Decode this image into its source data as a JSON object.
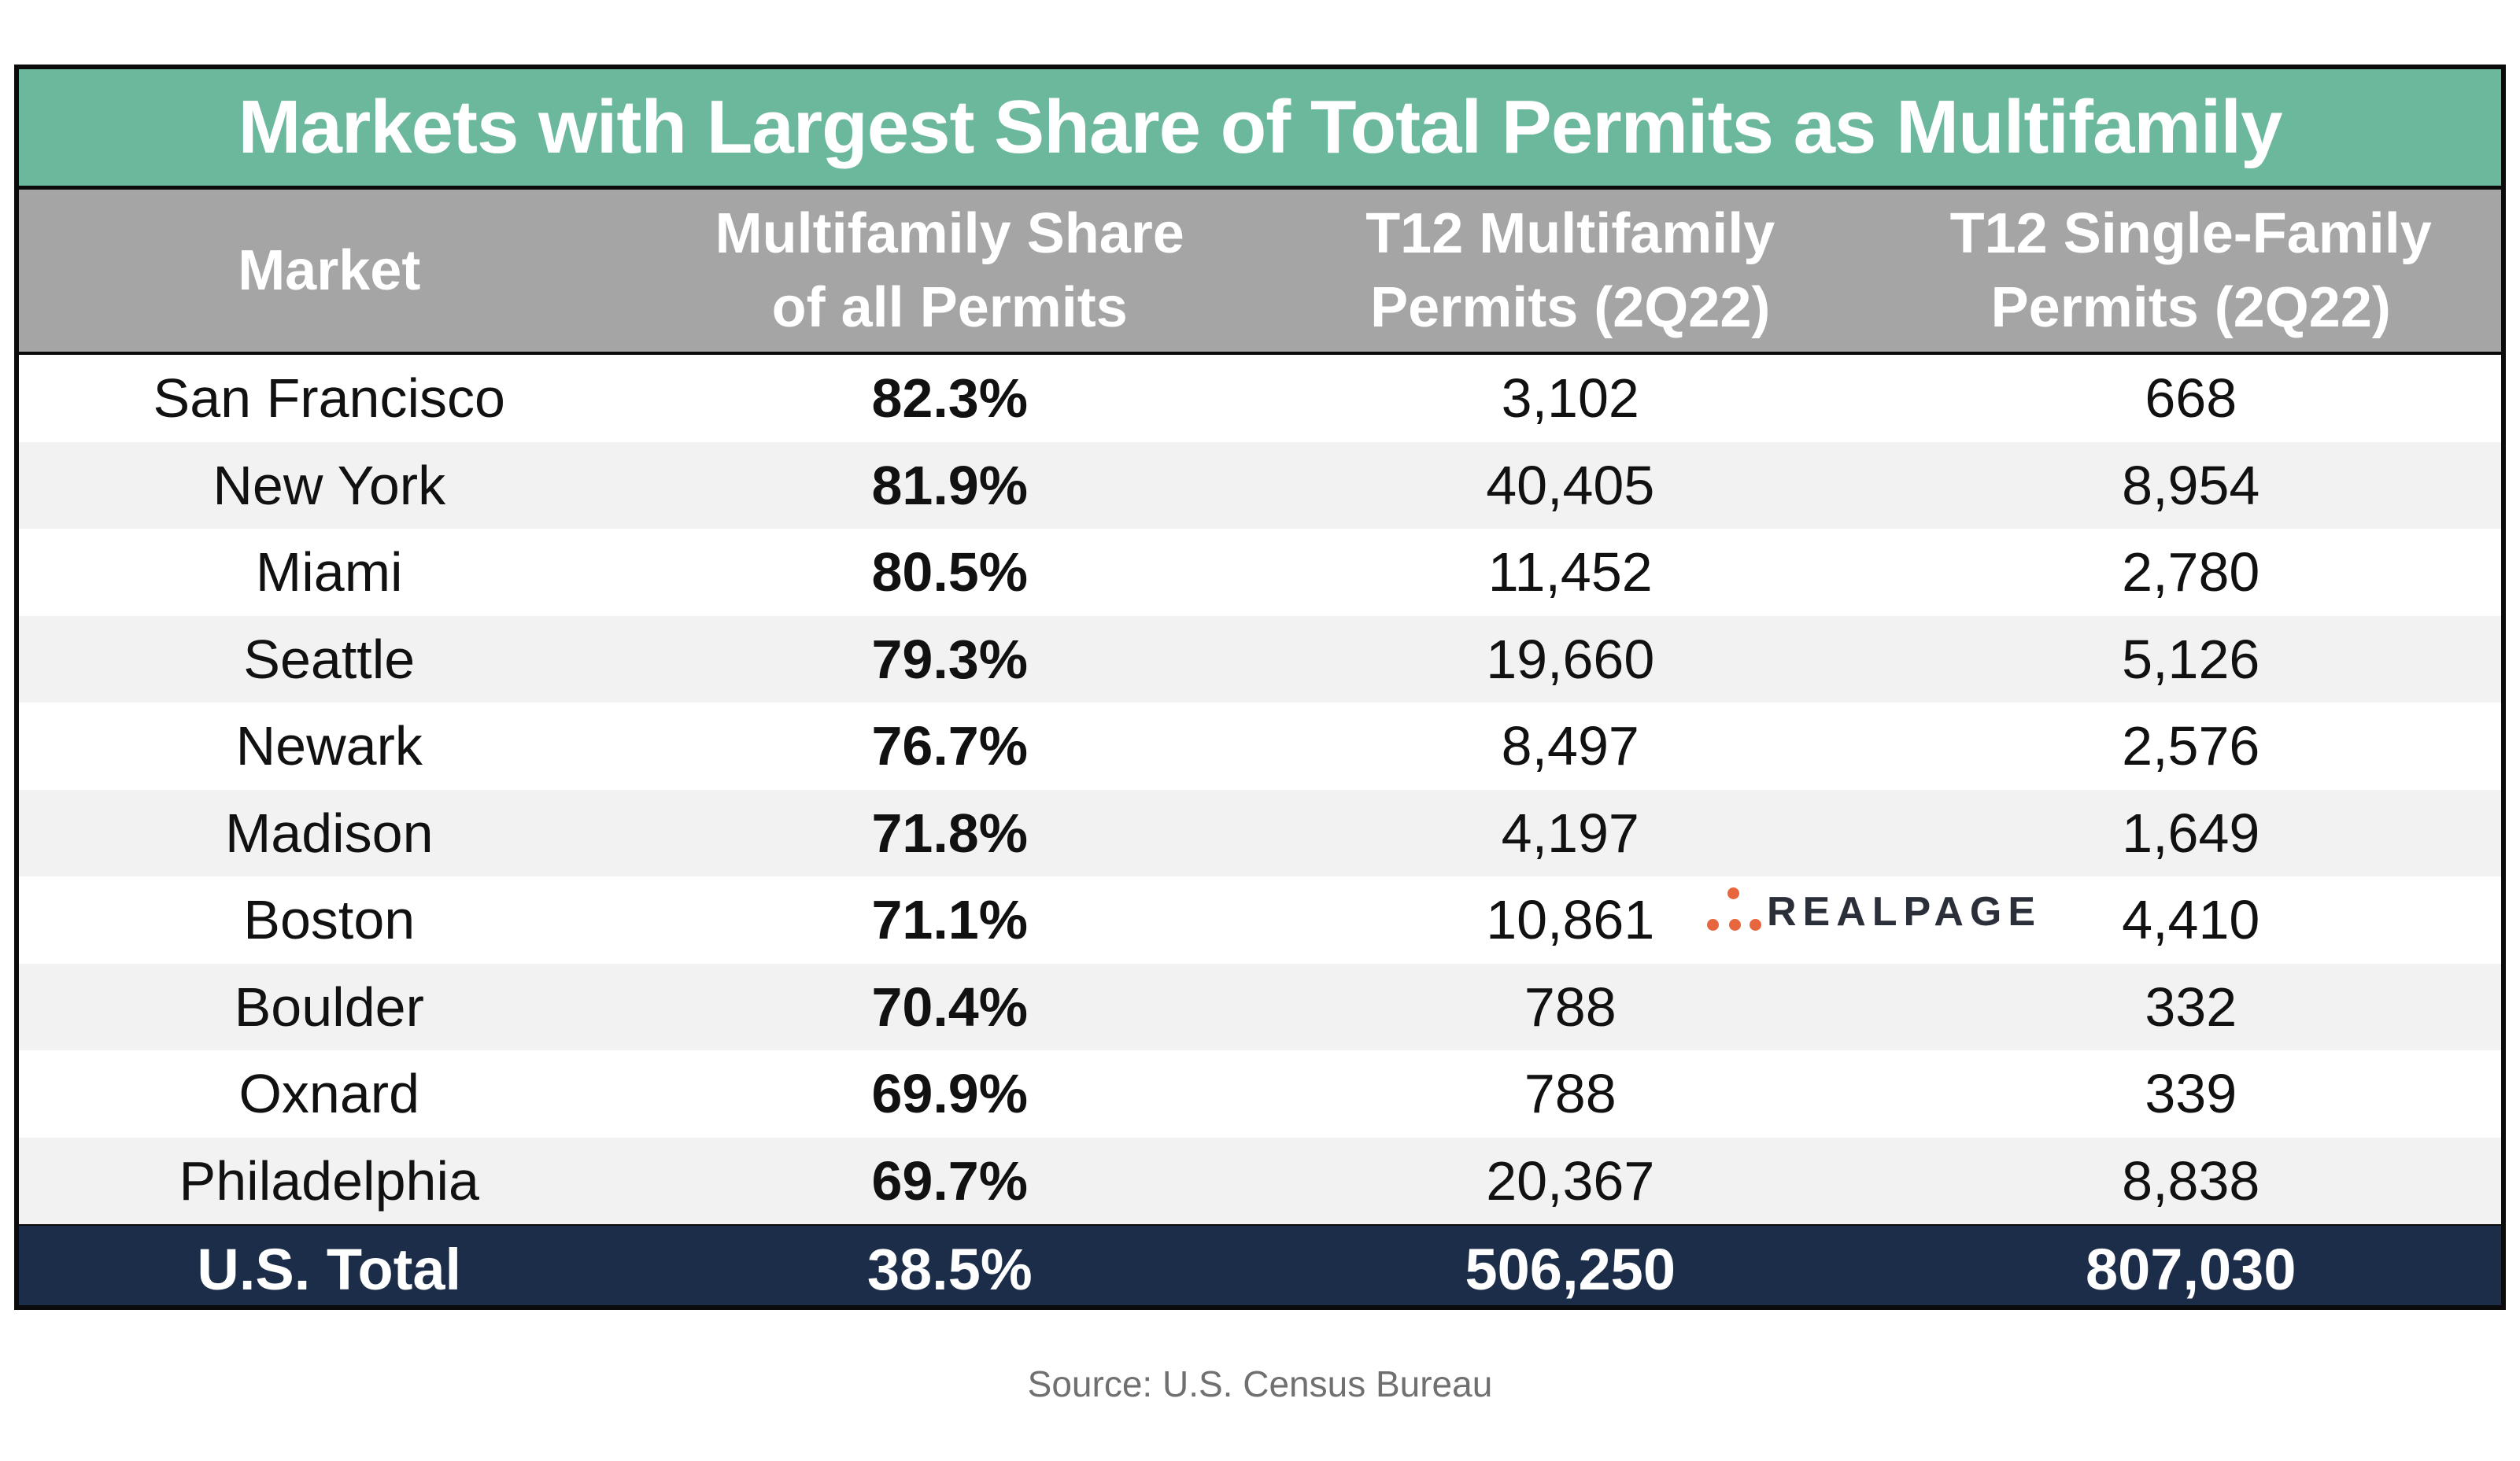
{
  "chart_data": {
    "type": "table",
    "title": "Markets with Largest Share of Total Permits as Multifamily",
    "columns": [
      {
        "line1": "Market",
        "line2": ""
      },
      {
        "line1": "Multifamily Share",
        "line2": "of all Permits"
      },
      {
        "line1": "T12 Multifamily",
        "line2": "Permits (2Q22)"
      },
      {
        "line1": "T12 Single-Family",
        "line2": "Permits (2Q22)"
      }
    ],
    "rows": [
      {
        "market": "San Francisco",
        "share": "82.3%",
        "mf": "3,102",
        "sf": "668"
      },
      {
        "market": "New York",
        "share": "81.9%",
        "mf": "40,405",
        "sf": "8,954"
      },
      {
        "market": "Miami",
        "share": "80.5%",
        "mf": "11,452",
        "sf": "2,780"
      },
      {
        "market": "Seattle",
        "share": "79.3%",
        "mf": "19,660",
        "sf": "5,126"
      },
      {
        "market": "Newark",
        "share": "76.7%",
        "mf": "8,497",
        "sf": "2,576"
      },
      {
        "market": "Madison",
        "share": "71.8%",
        "mf": "4,197",
        "sf": "1,649"
      },
      {
        "market": "Boston",
        "share": "71.1%",
        "mf": "10,861",
        "sf": "4,410"
      },
      {
        "market": "Boulder",
        "share": "70.4%",
        "mf": "788",
        "sf": "332"
      },
      {
        "market": "Oxnard",
        "share": "69.9%",
        "mf": "788",
        "sf": "339"
      },
      {
        "market": "Philadelphia",
        "share": "69.7%",
        "mf": "20,367",
        "sf": "8,838"
      }
    ],
    "total": {
      "market": "U.S. Total",
      "share": "38.5%",
      "mf": "506,250",
      "sf": "807,030"
    },
    "source": "Source: U.S. Census Bureau"
  },
  "logo": {
    "text": "REALPAGE",
    "icon": "realpage-dots-icon"
  },
  "colors": {
    "title_bg": "#6cb89c",
    "header_bg": "#a5a5a5",
    "row_shaded": "#f2f2f2",
    "total_bg": "#1c2d4a",
    "logo_dots": "#e8663d"
  }
}
